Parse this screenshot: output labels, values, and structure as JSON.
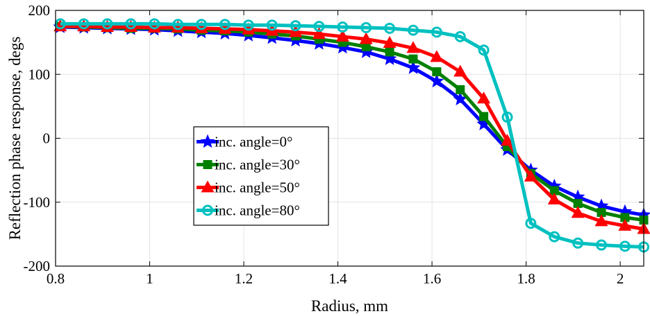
{
  "chart_data": {
    "type": "line",
    "title": "",
    "xlabel": "Radius, mm",
    "ylabel": "Reflection phase response, degs",
    "xlim": [
      0.8,
      2.05
    ],
    "ylim": [
      -200,
      200
    ],
    "x_ticks": [
      0.8,
      1,
      1.2,
      1.4,
      1.6,
      1.8,
      2
    ],
    "x_tick_labels": [
      "0.8",
      "1",
      "1.2",
      "1.4",
      "1.6",
      "1.8",
      "2"
    ],
    "y_ticks": [
      -200,
      -100,
      0,
      100,
      200
    ],
    "y_tick_labels": [
      "-200",
      "-100",
      "0",
      "100",
      "200"
    ],
    "grid": true,
    "legend_position": "center-left",
    "x": [
      0.81,
      0.86,
      0.91,
      0.96,
      1.01,
      1.06,
      1.11,
      1.16,
      1.21,
      1.26,
      1.31,
      1.36,
      1.41,
      1.46,
      1.51,
      1.56,
      1.61,
      1.66,
      1.71,
      1.76,
      1.81,
      1.86,
      1.91,
      1.96,
      2.01,
      2.05
    ],
    "series": [
      {
        "name": "inc. angle=0°",
        "color": "#0000ff",
        "marker": "star",
        "values": [
          174,
          173,
          172,
          171,
          170,
          168,
          166,
          164,
          161,
          157,
          153,
          148,
          142,
          135,
          124,
          110,
          89,
          61,
          22,
          -18,
          -50,
          -75,
          -92,
          -106,
          -115,
          -120
        ]
      },
      {
        "name": "inc. angle=30°",
        "color": "#008000",
        "marker": "square",
        "values": [
          175,
          174,
          173,
          172,
          172,
          171,
          169,
          168,
          166,
          163,
          160,
          155,
          150,
          143,
          135,
          124,
          104,
          76,
          34,
          -13,
          -55,
          -82,
          -102,
          -116,
          -124,
          -128
        ]
      },
      {
        "name": "inc. angle=50°",
        "color": "#ff0000",
        "marker": "triangle",
        "values": [
          175,
          175,
          174,
          174,
          173,
          173,
          172,
          171,
          170,
          168,
          166,
          163,
          159,
          155,
          149,
          141,
          127,
          104,
          62,
          -4,
          -60,
          -96,
          -117,
          -130,
          -137,
          -142
        ]
      },
      {
        "name": "inc. angle=80°",
        "color": "#00c0c0",
        "marker": "circle",
        "values": [
          179,
          179,
          179,
          179,
          179,
          178,
          178,
          178,
          177,
          177,
          176,
          175,
          174,
          173,
          172,
          169,
          166,
          159,
          138,
          33,
          -133,
          -154,
          -164,
          -167,
          -169,
          -170
        ]
      }
    ]
  }
}
